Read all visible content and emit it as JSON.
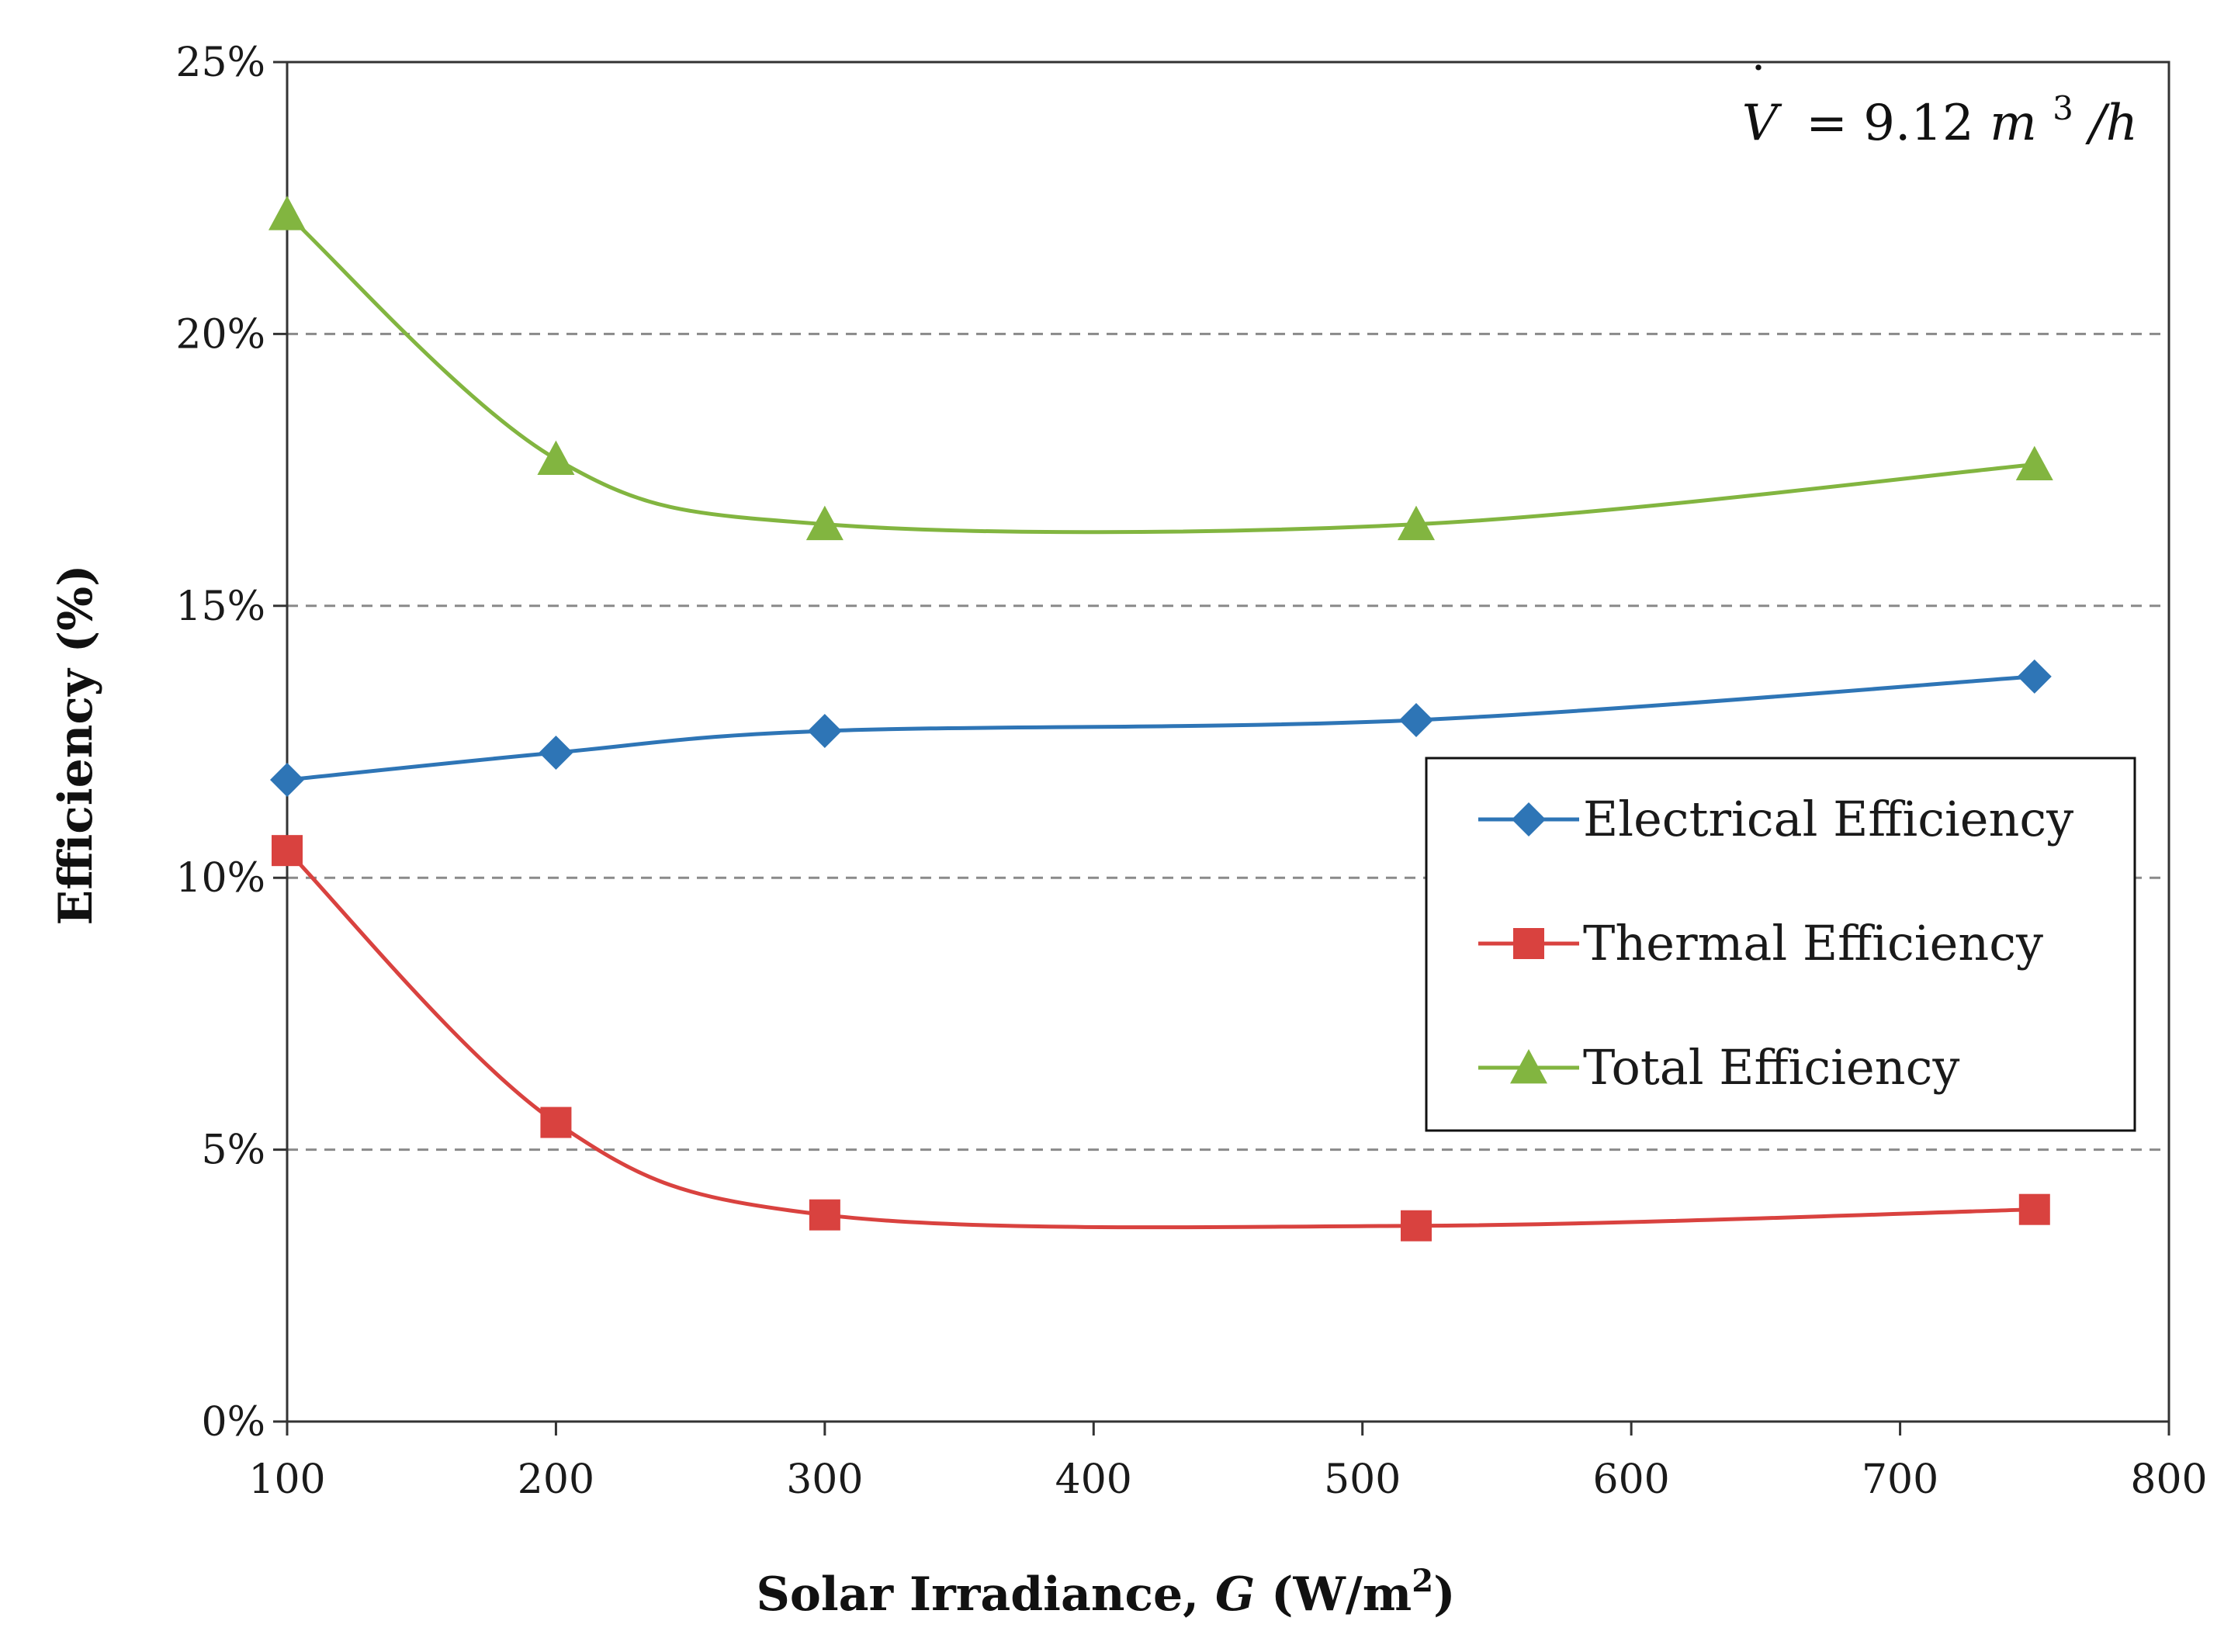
{
  "chart_data": {
    "type": "line",
    "title": "",
    "xlabel": "Solar Irradiance, ",
    "xlabel_var": "G",
    "xlabel_unit": " (W/m",
    "xlabel_sup": "2",
    "xlabel_close": ")",
    "ylabel": "Efficiency (%)",
    "xlim": [
      100,
      800
    ],
    "ylim": [
      0,
      25
    ],
    "x_ticks": [
      100,
      200,
      300,
      400,
      500,
      600,
      700,
      800
    ],
    "x_tick_labels": [
      "100",
      "200",
      "300",
      "400",
      "500",
      "600",
      "700",
      "800"
    ],
    "y_ticks": [
      0,
      5,
      10,
      15,
      20,
      25
    ],
    "y_tick_labels": [
      "0%",
      "5%",
      "10%",
      "15%",
      "20%",
      "25%"
    ],
    "grid": "horizontal dashed",
    "legend_position": "right",
    "annotation": {
      "var": "V",
      "dot": "˙",
      "eq": "= 9.12 ",
      "unit_m": "m",
      "sup": "3",
      "unit_h": "/h"
    },
    "x": [
      100,
      200,
      300,
      520,
      750
    ],
    "series": [
      {
        "name": "Electrical Efficiency",
        "marker": "diamond",
        "color": "#2e75b6",
        "values": [
          11.8,
          12.3,
          12.7,
          12.9,
          13.7
        ]
      },
      {
        "name": "Thermal Efficiency",
        "marker": "square",
        "color": "#d9423f",
        "values": [
          10.5,
          5.5,
          3.8,
          3.6,
          3.9
        ]
      },
      {
        "name": "Total Efficiency",
        "marker": "triangle",
        "color": "#82b540",
        "values": [
          22.2,
          17.7,
          16.5,
          16.5,
          17.6
        ]
      }
    ]
  }
}
